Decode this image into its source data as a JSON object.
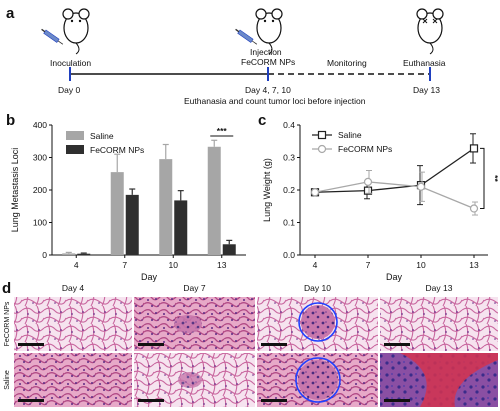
{
  "panels": {
    "a": "a",
    "b": "b",
    "c": "c",
    "d": "d"
  },
  "timeline": {
    "inoculation": "Inoculation",
    "injection_line1": "Injection",
    "injection_line2": "FeCORM NPs",
    "monitoring": "Monitoring",
    "euthanasia": "Euthanasia",
    "day0": "Day 0",
    "day_inj": "Day 4, 7, 10",
    "day13": "Day 13",
    "note": "Euthanasia and count tumor loci before injection"
  },
  "colors": {
    "saline_bar": "#a6a6a6",
    "fecorm_bar": "#2f2f2f",
    "saline_line": "#222222",
    "fecorm_line": "#a8a8a8",
    "timeline_blue": "#1f3fbf",
    "tissue_pink": "#e9b4cf",
    "tissue_purple": "#8a3f8c",
    "circle_blue": "#2040ff"
  },
  "chart_data": [
    {
      "type": "bar",
      "panel": "b",
      "categories": [
        "4",
        "7",
        "10",
        "13"
      ],
      "xlabel": "Day",
      "ylabel": "Lung Metastasis Loci",
      "ylim": [
        0,
        400
      ],
      "yticks": [
        "0",
        "100",
        "200",
        "300",
        "400"
      ],
      "legend_placement": "top-left",
      "series": [
        {
          "name": "Saline",
          "values": [
            5,
            255,
            295,
            333
          ],
          "errors": [
            3,
            55,
            45,
            20
          ]
        },
        {
          "name": "FeCORM NPs",
          "values": [
            4,
            185,
            168,
            33
          ],
          "errors": [
            2,
            18,
            30,
            12
          ]
        }
      ],
      "annotation": "***"
    },
    {
      "type": "line",
      "panel": "c",
      "x": [
        "4",
        "7",
        "10",
        "13"
      ],
      "xlabel": "Day",
      "ylabel": "Lung Weight (g)",
      "ylim": [
        0.0,
        0.4
      ],
      "yticks": [
        "0.0",
        "0.1",
        "0.2",
        "0.3",
        "0.4"
      ],
      "legend_placement": "top-left",
      "series": [
        {
          "name": "Saline",
          "values": [
            0.193,
            0.198,
            0.215,
            0.328
          ],
          "errors": [
            0.005,
            0.025,
            0.06,
            0.045
          ]
        },
        {
          "name": "FeCORM NPs",
          "values": [
            0.193,
            0.225,
            0.21,
            0.143
          ],
          "errors": [
            0.005,
            0.035,
            0.045,
            0.02
          ]
        }
      ],
      "annotation": "**"
    }
  ],
  "histology": {
    "columns": [
      "Day 4",
      "Day 7",
      "Day 10",
      "Day 13"
    ],
    "rows": [
      "FeCORM NPs",
      "Saline"
    ]
  }
}
